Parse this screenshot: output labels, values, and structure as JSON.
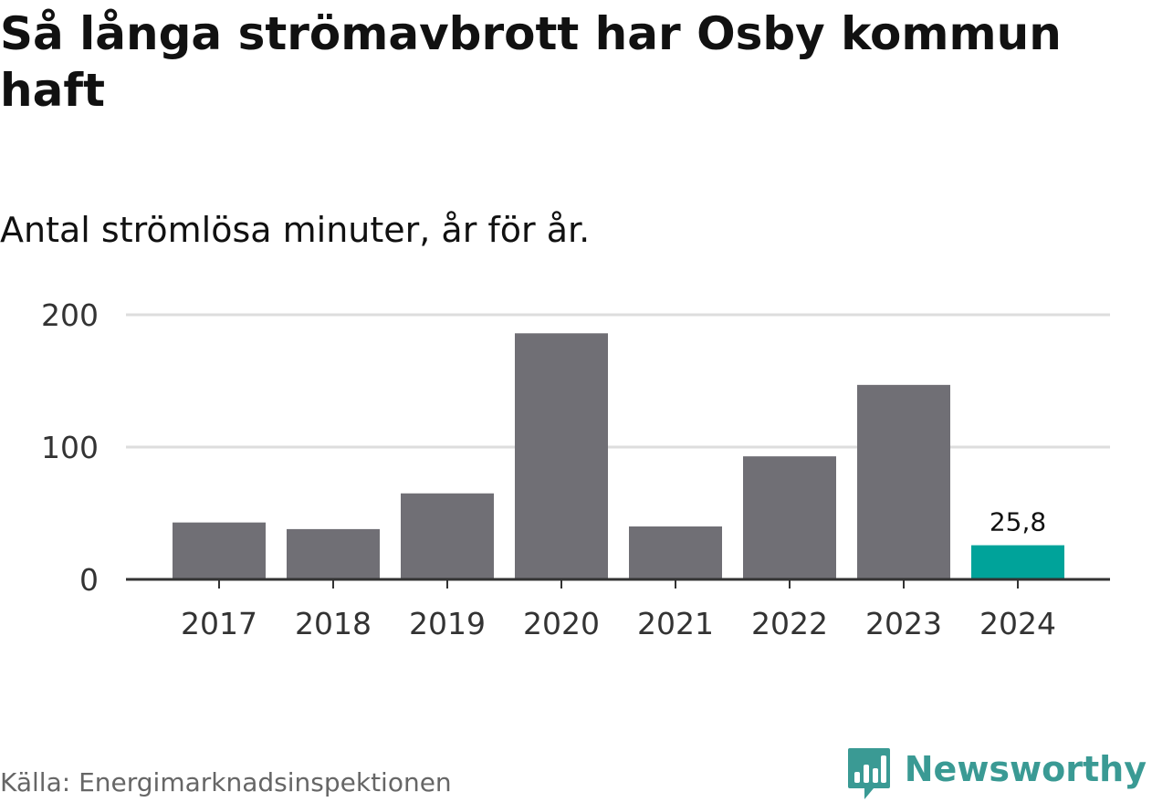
{
  "title": "Så långa strömavbrott har Osby kommun haft",
  "subtitle": "Antal strömlösa minuter, år för år.",
  "source": "Källa: Energimarknadsinspektionen",
  "brand": {
    "name": "Newsworthy",
    "icon": "bar-chart-speech-bubble-icon"
  },
  "colors": {
    "bar": "#706f75",
    "highlight": "#00a39a",
    "grid": "#dddddd",
    "axis": "#333333",
    "brand": "#3a9a94"
  },
  "chart_data": {
    "type": "bar",
    "title": "Så långa strömavbrott har Osby kommun haft",
    "subtitle": "Antal strömlösa minuter, år för år.",
    "categories": [
      "2017",
      "2018",
      "2019",
      "2020",
      "2021",
      "2022",
      "2023",
      "2024"
    ],
    "values": [
      43,
      38,
      65,
      186,
      40,
      93,
      147,
      25.8
    ],
    "highlight_index": 7,
    "data_labels": [
      {
        "index": 7,
        "text": "25,8"
      }
    ],
    "xlabel": "",
    "ylabel": "",
    "ylim": [
      0,
      200
    ],
    "yticks": [
      0,
      100,
      200
    ],
    "grid": true
  }
}
